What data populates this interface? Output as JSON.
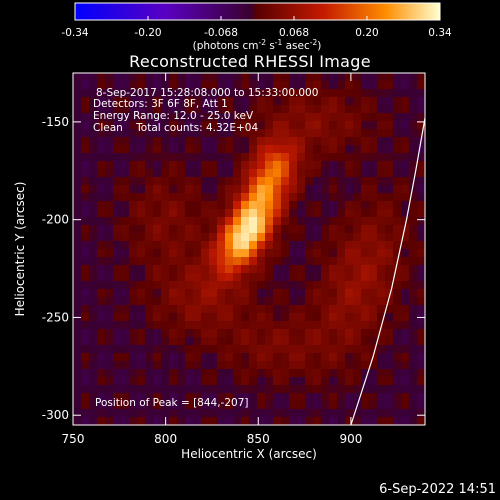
{
  "title": "Reconstructed RHESSI Image",
  "colorbar": {
    "ticks": [
      "-0.34",
      "-0.20",
      "-0.068",
      "0.068",
      "0.20",
      "0.34"
    ],
    "units_main": "(photons cm",
    "units_sup1": "-2",
    "units_mid1": " s",
    "units_sup2": "-1",
    "units_mid2": " asec",
    "units_sup3": "-2",
    "units_end": ")"
  },
  "annotations": {
    "time_range": "8-Sep-2017 15:28:08.000 to 15:33:00.000",
    "detectors": "Detectors: 3F 6F 8F, Att 1",
    "energy_range": "Energy Range: 12.0 - 25.0 keV",
    "clean": "Clean    Total counts: 4.32E+04",
    "peak_position": "Position of Peak = [844,-207]"
  },
  "footer_timestamp": "6-Sep-2022 14:51",
  "chart_data": {
    "type": "heatmap",
    "xlabel": "Heliocentric X (arcsec)",
    "ylabel": "Heliocentric Y (arcsec)",
    "xlim": [
      750,
      940
    ],
    "ylim": [
      -305,
      -125
    ],
    "xticks": [
      750,
      800,
      850,
      900
    ],
    "yticks": [
      -150,
      -200,
      -250,
      -300
    ],
    "color_range": [
      -0.34,
      0.34
    ],
    "peak": [
      844,
      -207
    ],
    "sources": [
      {
        "x": 843,
        "y": -208,
        "amp": 1.0,
        "sx": 8,
        "sy": 14,
        "angle_deg": -35
      },
      {
        "x": 853,
        "y": -185,
        "amp": 0.55,
        "sx": 8,
        "sy": 12,
        "angle_deg": -35
      },
      {
        "x": 860,
        "y": -170,
        "amp": 0.35,
        "sx": 9,
        "sy": 9,
        "angle_deg": 0
      },
      {
        "x": 905,
        "y": -230,
        "amp": 0.25,
        "sx": 14,
        "sy": 28,
        "angle_deg": -20
      },
      {
        "x": 820,
        "y": -240,
        "amp": 0.2,
        "sx": 18,
        "sy": 14,
        "angle_deg": 0
      },
      {
        "x": 880,
        "y": -150,
        "amp": 0.18,
        "sx": 22,
        "sy": 12,
        "angle_deg": 0
      },
      {
        "x": 800,
        "y": -200,
        "amp": 0.15,
        "sx": 16,
        "sy": 18,
        "angle_deg": 0
      },
      {
        "x": 860,
        "y": -265,
        "amp": 0.15,
        "sx": 20,
        "sy": 12,
        "angle_deg": 0
      }
    ],
    "limb": [
      [
        900,
        -305
      ],
      [
        912,
        -270
      ],
      [
        922,
        -235
      ],
      [
        930,
        -200
      ],
      [
        935,
        -175
      ],
      [
        940,
        -148
      ]
    ]
  }
}
